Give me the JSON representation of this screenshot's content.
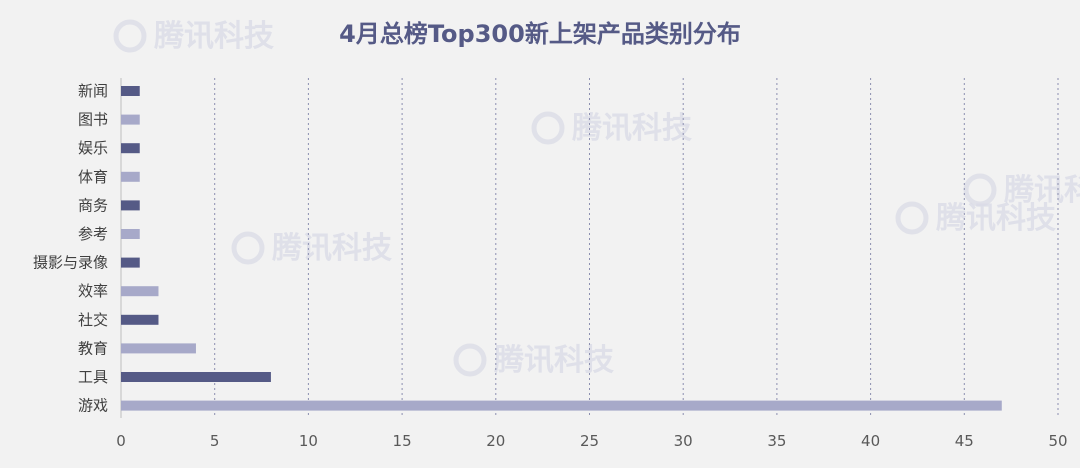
{
  "chart_data": {
    "type": "bar",
    "orientation": "horizontal",
    "title": "4月总榜Top300新上架产品类别分布",
    "categories": [
      "新闻",
      "图书",
      "娱乐",
      "体育",
      "商务",
      "参考",
      "摄影与录像",
      "效率",
      "社交",
      "教育",
      "工具",
      "游戏"
    ],
    "values": [
      1,
      1,
      1,
      1,
      1,
      1,
      1,
      2,
      2,
      4,
      8,
      47
    ],
    "xlim": [
      0,
      50
    ],
    "x_ticks": [
      0,
      5,
      10,
      15,
      20,
      25,
      30,
      35,
      40,
      45,
      50
    ],
    "grid": true,
    "legend": "none",
    "colors": {
      "dark": "#555a86",
      "light": "#a7a9c9"
    }
  },
  "watermark": {
    "text": "腾讯科技"
  }
}
